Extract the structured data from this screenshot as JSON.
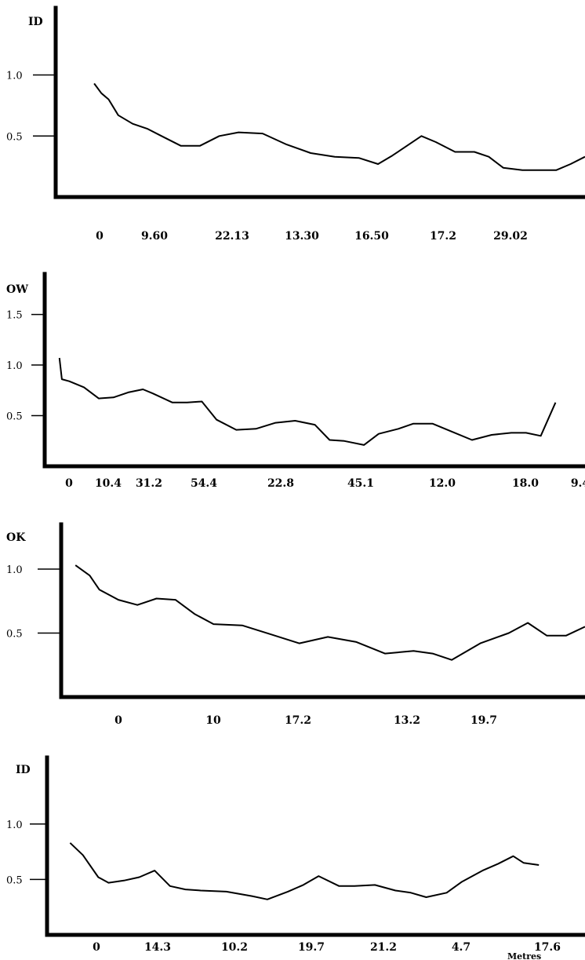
{
  "chart_data": [
    {
      "type": "line",
      "ylabel": "ID",
      "xtick_labels": [
        "0",
        "9.60",
        "22.13",
        "13.30",
        "16.50",
        "17.2",
        "29.02"
      ],
      "ytick_labels": [
        "1.0",
        "0.5"
      ],
      "yticks": [
        1.0,
        0.5
      ],
      "ylim": [
        0.0,
        1.55
      ],
      "xlim": [
        -1.0,
        10.0
      ],
      "grid": false,
      "line_color": "#000000",
      "series": [
        {
          "x": [
            -0.2,
            -0.05,
            0.1,
            0.3,
            0.6,
            0.9,
            1.2,
            1.6,
            2.0,
            2.4,
            2.8,
            3.3,
            3.8,
            4.3,
            4.8,
            5.3,
            5.7,
            6.0,
            6.3,
            6.6,
            6.9,
            7.3,
            7.7,
            8.0,
            8.3,
            8.7,
            9.1,
            9.4,
            9.7,
            10.0
          ],
          "y": [
            0.93,
            0.85,
            0.8,
            0.67,
            0.6,
            0.56,
            0.5,
            0.42,
            0.42,
            0.5,
            0.53,
            0.52,
            0.43,
            0.36,
            0.33,
            0.32,
            0.27,
            0.34,
            0.42,
            0.5,
            0.45,
            0.37,
            0.37,
            0.33,
            0.24,
            0.22,
            0.22,
            0.22,
            0.27,
            0.33
          ]
        }
      ]
    },
    {
      "type": "line",
      "ylabel": "OW",
      "xtick_labels": [
        "0",
        "10.4",
        "31.2",
        "54.4",
        "22.8",
        "45.1",
        "12.0",
        "18.0",
        "9.4"
      ],
      "ytick_labels": [
        "1.5",
        "1.0",
        "0.5"
      ],
      "yticks": [
        1.5,
        1.0,
        0.5
      ],
      "ylim": [
        0.0,
        1.9
      ],
      "xlim": [
        -0.5,
        10.5
      ],
      "grid": false,
      "line_color": "#000000",
      "series": [
        {
          "x": [
            -0.2,
            -0.15,
            0.0,
            0.3,
            0.6,
            0.9,
            1.2,
            1.5,
            1.7,
            2.1,
            2.4,
            2.7,
            3.0,
            3.4,
            3.8,
            4.2,
            4.6,
            5.0,
            5.3,
            5.6,
            6.0,
            6.3,
            6.7,
            7.0,
            7.4,
            7.8,
            8.2,
            8.6,
            9.0,
            9.3,
            9.6,
            9.9
          ],
          "y": [
            1.07,
            0.86,
            0.84,
            0.78,
            0.67,
            0.68,
            0.73,
            0.76,
            0.72,
            0.63,
            0.63,
            0.64,
            0.46,
            0.36,
            0.37,
            0.43,
            0.45,
            0.41,
            0.26,
            0.25,
            0.21,
            0.32,
            0.37,
            0.42,
            0.42,
            0.34,
            0.26,
            0.31,
            0.33,
            0.33,
            0.3,
            0.63
          ]
        }
      ]
    },
    {
      "type": "line",
      "ylabel": "OK",
      "xtick_labels": [
        "0",
        "10",
        "17.2",
        "13.2",
        "19.7"
      ],
      "ytick_labels": [
        "1.0",
        "0.5"
      ],
      "yticks": [
        1.0,
        0.5
      ],
      "ylim": [
        0.0,
        1.35
      ],
      "xlim": [
        -0.3,
        5.2
      ],
      "grid": false,
      "line_color": "#000000",
      "series": [
        {
          "x": [
            -0.15,
            0.0,
            0.1,
            0.3,
            0.5,
            0.7,
            0.9,
            1.1,
            1.3,
            1.6,
            1.9,
            2.2,
            2.5,
            2.8,
            3.1,
            3.4,
            3.6,
            3.8,
            4.1,
            4.4,
            4.6,
            4.8,
            5.0,
            5.2
          ],
          "y": [
            1.03,
            0.95,
            0.84,
            0.76,
            0.72,
            0.77,
            0.76,
            0.65,
            0.57,
            0.56,
            0.49,
            0.42,
            0.47,
            0.43,
            0.34,
            0.36,
            0.34,
            0.29,
            0.42,
            0.5,
            0.58,
            0.48,
            0.48,
            0.55
          ]
        }
      ]
    },
    {
      "type": "line",
      "ylabel": "ID",
      "xlabel": "Metres",
      "xtick_labels": [
        "0",
        "14.3",
        "10.2",
        "19.7",
        "21.2",
        "4.7",
        "17.6"
      ],
      "ytick_labels": [
        "1.0",
        "0.5"
      ],
      "yticks": [
        1.0,
        0.5
      ],
      "ylim": [
        0.0,
        1.6
      ],
      "xlim": [
        -1.0,
        9.5
      ],
      "grid": false,
      "line_color": "#000000",
      "series": [
        {
          "x": [
            -0.55,
            -0.3,
            0.0,
            0.2,
            0.5,
            0.8,
            1.1,
            1.4,
            1.7,
            2.0,
            2.5,
            3.0,
            3.3,
            3.7,
            4.0,
            4.3,
            4.7,
            5.0,
            5.4,
            5.8,
            6.1,
            6.4,
            6.8,
            7.1,
            7.5,
            7.8,
            8.1,
            8.3,
            8.6
          ],
          "y": [
            0.83,
            0.72,
            0.52,
            0.47,
            0.49,
            0.52,
            0.58,
            0.44,
            0.41,
            0.4,
            0.39,
            0.35,
            0.32,
            0.39,
            0.45,
            0.53,
            0.44,
            0.44,
            0.45,
            0.4,
            0.38,
            0.34,
            0.38,
            0.48,
            0.58,
            0.64,
            0.71,
            0.65,
            0.63
          ]
        }
      ]
    }
  ]
}
